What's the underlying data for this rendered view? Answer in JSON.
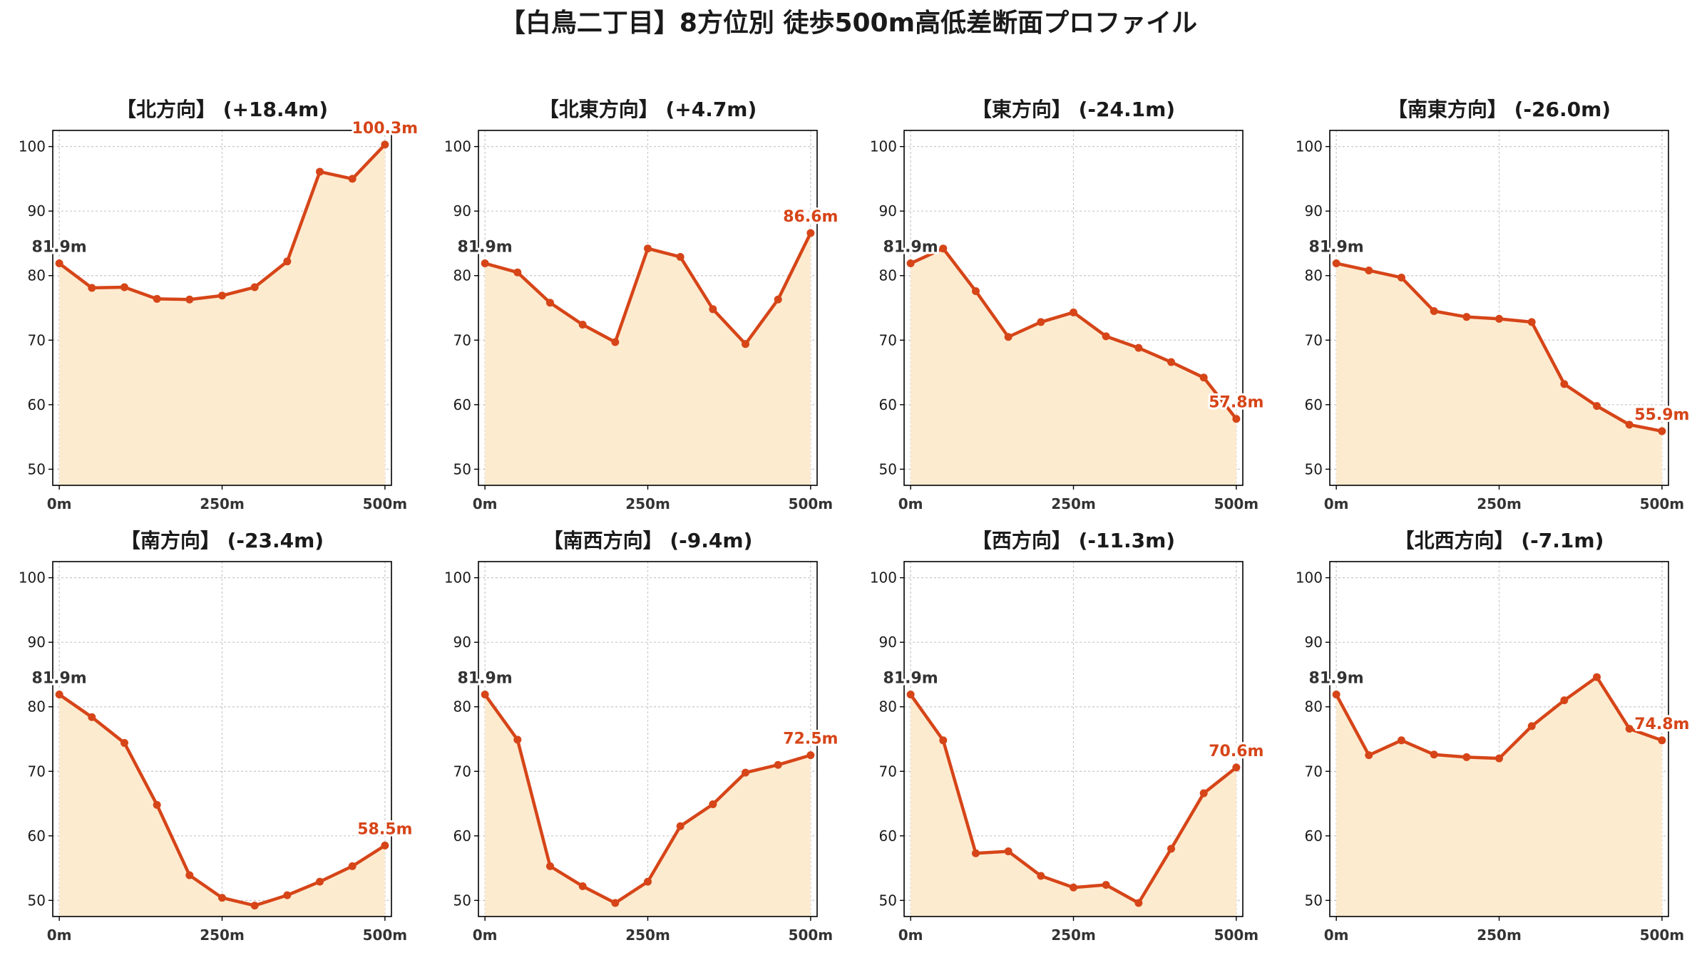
{
  "suptitle": "【白鳥二丁目】8方位別 徒歩500m高低差断面プロファイル",
  "colors": {
    "line": "#d64518",
    "fill": "#fdebd0",
    "grid": "#c8c8c8",
    "start_label": "#333333",
    "end_label": "#d64518"
  },
  "chart_data": [
    {
      "type": "area",
      "title": "【北方向】 (+18.4m)",
      "x": [
        0,
        50,
        100,
        150,
        200,
        250,
        300,
        350,
        400,
        450,
        500
      ],
      "values": [
        81.9,
        78.1,
        78.2,
        76.4,
        76.3,
        76.9,
        78.2,
        82.2,
        96.1,
        95.0,
        100.3
      ],
      "xticks": [
        "0m",
        "250m",
        "500m"
      ],
      "xtick_values": [
        0,
        250,
        500
      ],
      "yticks": [
        50,
        60,
        70,
        80,
        90,
        100
      ],
      "ylim": [
        47.5,
        102.5
      ],
      "xlim": [
        -10,
        510
      ],
      "grid": true,
      "start_label": "81.9m",
      "end_label": "100.3m"
    },
    {
      "type": "area",
      "title": "【北東方向】 (+4.7m)",
      "x": [
        0,
        50,
        100,
        150,
        200,
        250,
        300,
        350,
        400,
        450,
        500
      ],
      "values": [
        81.9,
        80.5,
        75.8,
        72.4,
        69.7,
        84.2,
        82.9,
        74.8,
        69.4,
        76.3,
        86.6
      ],
      "xticks": [
        "0m",
        "250m",
        "500m"
      ],
      "xtick_values": [
        0,
        250,
        500
      ],
      "yticks": [
        50,
        60,
        70,
        80,
        90,
        100
      ],
      "ylim": [
        47.5,
        102.5
      ],
      "xlim": [
        -10,
        510
      ],
      "grid": true,
      "start_label": "81.9m",
      "end_label": "86.6m"
    },
    {
      "type": "area",
      "title": "【東方向】 (-24.1m)",
      "x": [
        0,
        50,
        100,
        150,
        200,
        250,
        300,
        350,
        400,
        450,
        500
      ],
      "values": [
        81.9,
        84.2,
        77.6,
        70.5,
        72.8,
        74.3,
        70.6,
        68.8,
        66.6,
        64.2,
        57.8
      ],
      "xticks": [
        "0m",
        "250m",
        "500m"
      ],
      "xtick_values": [
        0,
        250,
        500
      ],
      "yticks": [
        50,
        60,
        70,
        80,
        90,
        100
      ],
      "ylim": [
        47.5,
        102.5
      ],
      "xlim": [
        -10,
        510
      ],
      "grid": true,
      "start_label": "81.9m",
      "end_label": "57.8m"
    },
    {
      "type": "area",
      "title": "【南東方向】 (-26.0m)",
      "x": [
        0,
        50,
        100,
        150,
        200,
        250,
        300,
        350,
        400,
        450,
        500
      ],
      "values": [
        81.9,
        80.8,
        79.7,
        74.5,
        73.6,
        73.3,
        72.8,
        63.2,
        59.8,
        56.9,
        55.9
      ],
      "xticks": [
        "0m",
        "250m",
        "500m"
      ],
      "xtick_values": [
        0,
        250,
        500
      ],
      "yticks": [
        50,
        60,
        70,
        80,
        90,
        100
      ],
      "ylim": [
        47.5,
        102.5
      ],
      "xlim": [
        -10,
        510
      ],
      "grid": true,
      "start_label": "81.9m",
      "end_label": "55.9m"
    },
    {
      "type": "area",
      "title": "【南方向】 (-23.4m)",
      "x": [
        0,
        50,
        100,
        150,
        200,
        250,
        300,
        350,
        400,
        450,
        500
      ],
      "values": [
        81.9,
        78.4,
        74.4,
        64.8,
        53.9,
        50.4,
        49.2,
        50.8,
        52.9,
        55.3,
        58.5
      ],
      "xticks": [
        "0m",
        "250m",
        "500m"
      ],
      "xtick_values": [
        0,
        250,
        500
      ],
      "yticks": [
        50,
        60,
        70,
        80,
        90,
        100
      ],
      "ylim": [
        47.5,
        102.5
      ],
      "xlim": [
        -10,
        510
      ],
      "grid": true,
      "start_label": "81.9m",
      "end_label": "58.5m"
    },
    {
      "type": "area",
      "title": "【南西方向】 (-9.4m)",
      "x": [
        0,
        50,
        100,
        150,
        200,
        250,
        300,
        350,
        400,
        450,
        500
      ],
      "values": [
        81.9,
        74.9,
        55.3,
        52.2,
        49.6,
        52.9,
        61.5,
        64.9,
        69.8,
        71.0,
        72.5
      ],
      "xticks": [
        "0m",
        "250m",
        "500m"
      ],
      "xtick_values": [
        0,
        250,
        500
      ],
      "yticks": [
        50,
        60,
        70,
        80,
        90,
        100
      ],
      "ylim": [
        47.5,
        102.5
      ],
      "xlim": [
        -10,
        510
      ],
      "grid": true,
      "start_label": "81.9m",
      "end_label": "72.5m"
    },
    {
      "type": "area",
      "title": "【西方向】 (-11.3m)",
      "x": [
        0,
        50,
        100,
        150,
        200,
        250,
        300,
        350,
        400,
        450,
        500
      ],
      "values": [
        81.9,
        74.8,
        57.3,
        57.6,
        53.8,
        52.0,
        52.4,
        49.6,
        58.0,
        66.6,
        70.6
      ],
      "xticks": [
        "0m",
        "250m",
        "500m"
      ],
      "xtick_values": [
        0,
        250,
        500
      ],
      "yticks": [
        50,
        60,
        70,
        80,
        90,
        100
      ],
      "ylim": [
        47.5,
        102.5
      ],
      "xlim": [
        -10,
        510
      ],
      "grid": true,
      "start_label": "81.9m",
      "end_label": "70.6m"
    },
    {
      "type": "area",
      "title": "【北西方向】 (-7.1m)",
      "x": [
        0,
        50,
        100,
        150,
        200,
        250,
        300,
        350,
        400,
        450,
        500
      ],
      "values": [
        81.9,
        72.5,
        74.8,
        72.6,
        72.2,
        72.0,
        77.0,
        81.0,
        84.6,
        76.6,
        74.8
      ],
      "xticks": [
        "0m",
        "250m",
        "500m"
      ],
      "xtick_values": [
        0,
        250,
        500
      ],
      "yticks": [
        50,
        60,
        70,
        80,
        90,
        100
      ],
      "ylim": [
        47.5,
        102.5
      ],
      "xlim": [
        -10,
        510
      ],
      "grid": true,
      "start_label": "81.9m",
      "end_label": "74.8m"
    }
  ]
}
